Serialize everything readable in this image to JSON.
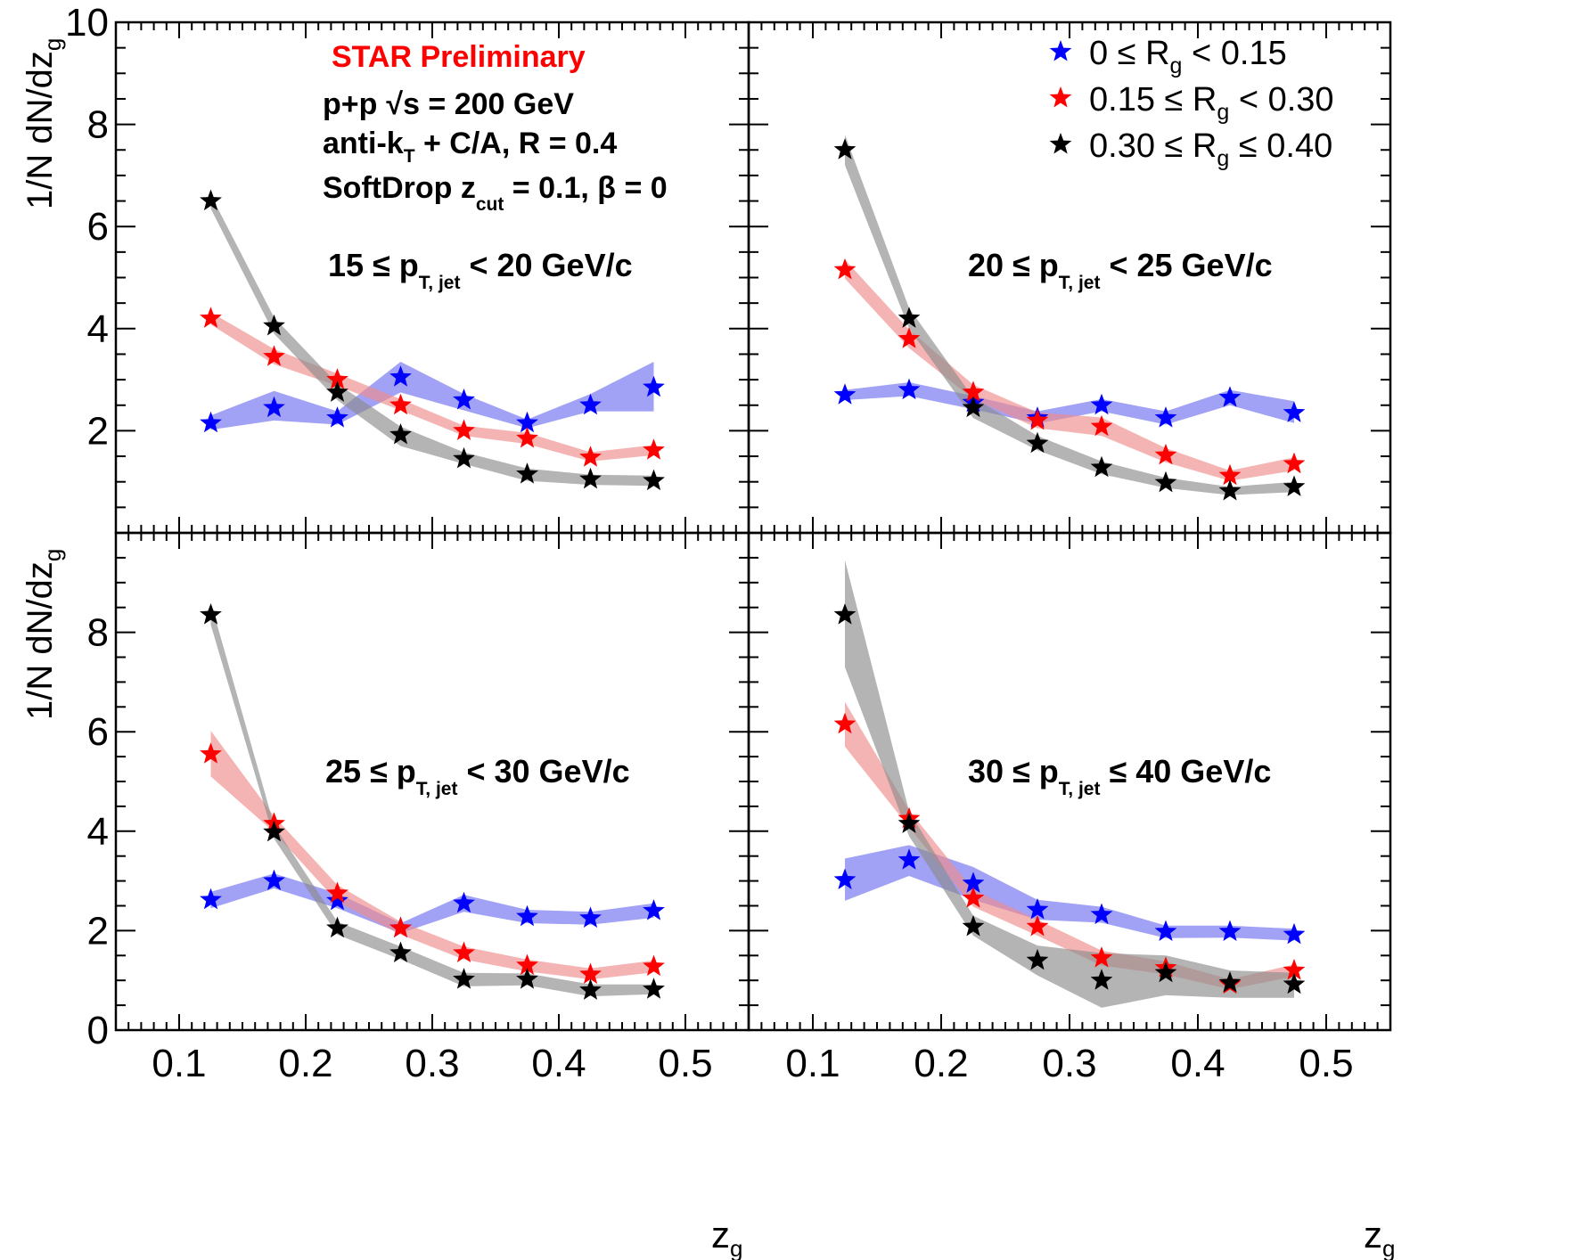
{
  "figure": {
    "preliminary_label": "STAR Preliminary",
    "preliminary_color": "#ff0000",
    "collision_main": "p+p",
    "collision_root": "√s",
    "collision_energy": " = 200 GeV",
    "algo_main": "anti-k",
    "algo_sub": "T",
    "algo_rest": " + C/A, R = 0.4",
    "sd_main": "SoftDrop z",
    "sd_sub": "cut",
    "sd_rest": " = 0.1, β = 0"
  },
  "axes": {
    "ylabel_main": "1/N dN/dz",
    "ylabel_sub": "g",
    "xlabel_main": "z",
    "xlabel_sub": "g",
    "x_ticks": [
      "0.1",
      "0.2",
      "0.3",
      "0.4",
      "0.5"
    ],
    "y_ticks_top": [
      "2",
      "4",
      "6",
      "8",
      "10"
    ],
    "y_ticks_bottom": [
      "0",
      "2",
      "4",
      "6",
      "8"
    ]
  },
  "legend": [
    {
      "pre": "0 ≤ R",
      "sub": "g",
      "post": " < 0.15"
    },
    {
      "pre": "0.15 ≤ R",
      "sub": "g",
      "post": " < 0.30"
    },
    {
      "pre": "0.30 ≤ R",
      "sub": "g",
      "post": " ≤ 0.40"
    }
  ],
  "panels": [
    {
      "bin_pre": "15 ≤ p",
      "bin_sub": "T, jet",
      "bin_post": " < 20 GeV/c"
    },
    {
      "bin_pre": "20 ≤ p",
      "bin_sub": "T, jet",
      "bin_post": " < 25 GeV/c"
    },
    {
      "bin_pre": "25 ≤ p",
      "bin_sub": "T, jet",
      "bin_post": " < 30 GeV/c"
    },
    {
      "bin_pre": "30 ≤ p",
      "bin_sub": "T, jet",
      "bin_post": " ≤ 40 GeV/c"
    }
  ],
  "chart_data": [
    {
      "type": "scatter",
      "panel": "15 ≤ pT,jet < 20 GeV/c",
      "x": [
        0.125,
        0.175,
        0.225,
        0.275,
        0.325,
        0.375,
        0.425,
        0.475
      ],
      "xlim": [
        0.05,
        0.55
      ],
      "ylim": [
        0,
        10
      ],
      "series": [
        {
          "name": "0 ≤ Rg < 0.15",
          "color": "#0000ff",
          "band_color": "#6e6ef0",
          "values": [
            2.15,
            2.45,
            2.25,
            3.05,
            2.6,
            2.15,
            2.5,
            2.85
          ],
          "band_low": [
            2.02,
            2.2,
            2.12,
            2.75,
            2.4,
            2.05,
            2.38,
            2.38
          ],
          "band_high": [
            2.3,
            2.78,
            2.38,
            3.35,
            2.72,
            2.22,
            2.72,
            3.35
          ]
        },
        {
          "name": "0.15 ≤ Rg < 0.30",
          "color": "#ff0000",
          "band_color": "#f08c8c",
          "values": [
            4.2,
            3.45,
            3.0,
            2.5,
            2.0,
            1.85,
            1.48,
            1.62
          ],
          "band_low": [
            4.08,
            3.3,
            2.88,
            2.4,
            1.9,
            1.74,
            1.4,
            1.52
          ],
          "band_high": [
            4.32,
            3.6,
            3.12,
            2.62,
            2.1,
            1.96,
            1.58,
            1.72
          ]
        },
        {
          "name": "0.30 ≤ Rg ≤ 0.40",
          "color": "#000000",
          "band_color": "#8c8c8c",
          "values": [
            6.5,
            4.05,
            2.75,
            1.92,
            1.45,
            1.15,
            1.05,
            1.02
          ],
          "band_low": [
            6.35,
            3.9,
            2.6,
            1.7,
            1.35,
            1.02,
            0.94,
            0.92
          ],
          "band_high": [
            6.62,
            4.22,
            2.92,
            2.08,
            1.58,
            1.26,
            1.14,
            1.12
          ]
        }
      ]
    },
    {
      "type": "scatter",
      "panel": "20 ≤ pT,jet < 25 GeV/c",
      "x": [
        0.125,
        0.175,
        0.225,
        0.275,
        0.325,
        0.375,
        0.425,
        0.475
      ],
      "xlim": [
        0.05,
        0.55
      ],
      "ylim": [
        0,
        10
      ],
      "series": [
        {
          "name": "0 ≤ Rg < 0.15",
          "color": "#0000ff",
          "band_color": "#6e6ef0",
          "values": [
            2.7,
            2.8,
            2.55,
            2.25,
            2.5,
            2.25,
            2.65,
            2.35
          ],
          "band_low": [
            2.6,
            2.68,
            2.42,
            2.14,
            2.38,
            2.12,
            2.5,
            2.15
          ],
          "band_high": [
            2.8,
            2.95,
            2.68,
            2.38,
            2.62,
            2.38,
            2.8,
            2.58
          ]
        },
        {
          "name": "0.15 ≤ Rg < 0.30",
          "color": "#ff0000",
          "band_color": "#f08c8c",
          "values": [
            5.15,
            3.8,
            2.75,
            2.2,
            2.08,
            1.52,
            1.12,
            1.35
          ],
          "band_low": [
            4.98,
            3.62,
            2.62,
            2.05,
            1.9,
            1.38,
            1.02,
            1.22
          ],
          "band_high": [
            5.35,
            3.98,
            2.9,
            2.36,
            2.26,
            1.66,
            1.22,
            1.48
          ]
        },
        {
          "name": "0.30 ≤ Rg ≤ 0.40",
          "color": "#000000",
          "band_color": "#8c8c8c",
          "values": [
            7.5,
            4.2,
            2.45,
            1.75,
            1.28,
            0.98,
            0.82,
            0.9
          ],
          "band_low": [
            7.2,
            4.0,
            2.25,
            1.62,
            1.15,
            0.88,
            0.74,
            0.8
          ],
          "band_high": [
            7.8,
            4.4,
            2.65,
            1.9,
            1.4,
            1.08,
            0.9,
            1.0
          ]
        }
      ]
    },
    {
      "type": "scatter",
      "panel": "25 ≤ pT,jet < 30 GeV/c",
      "x": [
        0.125,
        0.175,
        0.225,
        0.275,
        0.325,
        0.375,
        0.425,
        0.475
      ],
      "xlim": [
        0.05,
        0.55
      ],
      "ylim": [
        0,
        10
      ],
      "series": [
        {
          "name": "0 ≤ Rg < 0.15",
          "color": "#0000ff",
          "band_color": "#6e6ef0",
          "values": [
            2.62,
            3.0,
            2.6,
            2.05,
            2.55,
            2.28,
            2.25,
            2.4
          ],
          "band_low": [
            2.45,
            2.85,
            2.45,
            1.95,
            2.38,
            2.15,
            2.12,
            2.26
          ],
          "band_high": [
            2.78,
            3.15,
            2.75,
            2.15,
            2.72,
            2.42,
            2.38,
            2.55
          ]
        },
        {
          "name": "0.15 ≤ Rg < 0.30",
          "color": "#ff0000",
          "band_color": "#f08c8c",
          "values": [
            5.55,
            4.15,
            2.75,
            2.05,
            1.55,
            1.3,
            1.12,
            1.28
          ],
          "band_low": [
            5.1,
            3.98,
            2.58,
            1.92,
            1.42,
            1.18,
            1.02,
            1.16
          ],
          "band_high": [
            6.02,
            4.3,
            2.92,
            2.18,
            1.68,
            1.42,
            1.24,
            1.4
          ]
        },
        {
          "name": "0.30 ≤ Rg ≤ 0.40",
          "color": "#000000",
          "band_color": "#8c8c8c",
          "values": [
            8.35,
            3.98,
            2.05,
            1.55,
            1.02,
            1.02,
            0.8,
            0.82
          ],
          "band_low": [
            8.15,
            3.85,
            1.92,
            1.42,
            0.88,
            0.9,
            0.68,
            0.72
          ],
          "band_high": [
            8.6,
            4.12,
            2.18,
            1.68,
            1.15,
            1.14,
            0.92,
            0.92
          ]
        }
      ]
    },
    {
      "type": "scatter",
      "panel": "30 ≤ pT,jet ≤ 40 GeV/c",
      "x": [
        0.125,
        0.175,
        0.225,
        0.275,
        0.325,
        0.375,
        0.425,
        0.475
      ],
      "xlim": [
        0.05,
        0.55
      ],
      "ylim": [
        0,
        10
      ],
      "series": [
        {
          "name": "0 ≤ Rg < 0.15",
          "color": "#0000ff",
          "band_color": "#6e6ef0",
          "values": [
            3.02,
            3.42,
            2.95,
            2.42,
            2.32,
            1.98,
            1.98,
            1.92
          ],
          "band_low": [
            2.6,
            3.1,
            2.62,
            2.22,
            2.16,
            1.85,
            1.86,
            1.8
          ],
          "band_high": [
            3.45,
            3.72,
            3.28,
            2.62,
            2.48,
            2.1,
            2.1,
            2.04
          ]
        },
        {
          "name": "0.15 ≤ Rg < 0.30",
          "color": "#ff0000",
          "band_color": "#f08c8c",
          "values": [
            6.15,
            4.25,
            2.65,
            2.08,
            1.45,
            1.25,
            0.92,
            1.2
          ],
          "band_low": [
            5.7,
            4.08,
            2.48,
            1.9,
            1.3,
            1.12,
            0.82,
            1.08
          ],
          "band_high": [
            6.6,
            4.42,
            2.82,
            2.22,
            1.6,
            1.38,
            1.02,
            1.32
          ]
        },
        {
          "name": "0.30 ≤ Rg ≤ 0.40",
          "color": "#000000",
          "band_color": "#8c8c8c",
          "values": [
            8.35,
            4.15,
            2.08,
            1.4,
            1.0,
            1.15,
            0.95,
            0.92
          ],
          "band_low": [
            7.3,
            3.9,
            1.9,
            1.1,
            0.45,
            0.7,
            0.65,
            0.65
          ],
          "band_high": [
            9.45,
            4.4,
            2.3,
            1.7,
            1.55,
            1.5,
            1.2,
            1.15
          ]
        }
      ]
    }
  ]
}
